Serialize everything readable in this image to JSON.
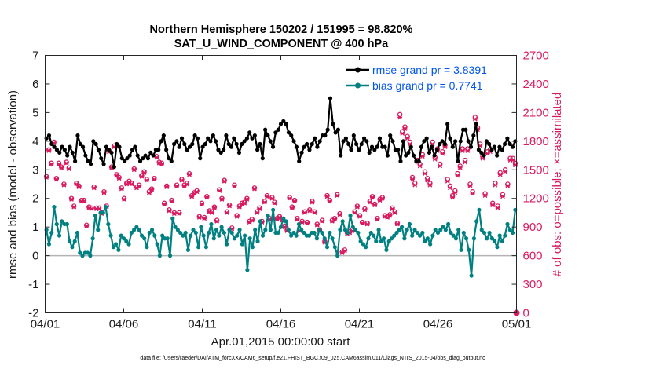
{
  "chart_data": {
    "type": "line",
    "title": "Northern Hemisphere 150202 / 151995 = 98.820%",
    "subtitle": "SAT_U_WIND_COMPONENT @ 400 hPa",
    "xlabel": "Apr.01,2015 00:00:00 start",
    "ylabel_left": "rmse and bias (model - observation)",
    "ylabel_right": "# of obs: o=possible; ×=assimilated",
    "footnote": "data file: /Users/raeder/DAI/ATM_forcXX/CAM6_setup/f.e21.FHIST_BGC.f09_025.CAM6assim.011/Diags_NTrS_2015-04/obs_diag_output.nc",
    "x_tick_labels": [
      "04/01",
      "04/06",
      "04/11",
      "04/16",
      "04/21",
      "04/26",
      "05/01"
    ],
    "x_tick_days": [
      0,
      5,
      10,
      15,
      20,
      25,
      30
    ],
    "xlim": [
      0,
      30
    ],
    "ylim_left": [
      -2,
      7
    ],
    "ylim_right": [
      0,
      2700
    ],
    "left_ticks": [
      -2,
      -1,
      0,
      1,
      2,
      3,
      4,
      5,
      6,
      7
    ],
    "right_ticks": [
      0,
      300,
      600,
      900,
      1200,
      1500,
      1800,
      2100,
      2400,
      2700
    ],
    "grid": false,
    "legend_position": "top-right",
    "zero_line": 0,
    "series": [
      {
        "name": "rmse grand pr = 3.8391",
        "color": "#000000",
        "marker": "filled-circle",
        "values": [
          4.1,
          4.2,
          3.9,
          3.8,
          3.7,
          3.6,
          3.8,
          3.7,
          3.5,
          3.8,
          3.6,
          3.3,
          4.2,
          3.9,
          3.8,
          3.5,
          3.3,
          3.2,
          4.0,
          3.9,
          3.7,
          3.4,
          3.2,
          3.8,
          3.7,
          3.6,
          3.1,
          3.9,
          3.8,
          3.4,
          3.3,
          3.4,
          3.5,
          3.7,
          3.8,
          3.5,
          3.3,
          3.4,
          3.5,
          3.4,
          3.6,
          3.5,
          3.7,
          3.7,
          4.0,
          4.2,
          3.7,
          3.4,
          3.3,
          3.9,
          4.0,
          3.8,
          4.1,
          3.9,
          3.7,
          3.8,
          3.9,
          4.2,
          4.1,
          3.4,
          3.8,
          3.9,
          4.1,
          4.0,
          4.2,
          4.0,
          3.7,
          3.6,
          3.7,
          4.2,
          3.9,
          3.8,
          4.1,
          3.9,
          3.6,
          3.9,
          4.0,
          4.1,
          4.3,
          4.1,
          4.2,
          3.7,
          3.9,
          3.4,
          4.4,
          4.2,
          4.0,
          3.8,
          4.3,
          4.4,
          4.6,
          4.7,
          4.6,
          4.3,
          4.2,
          4.0,
          3.8,
          3.3,
          3.6,
          3.8,
          3.9,
          3.7,
          3.9,
          4.1,
          3.8,
          4.0,
          4.2,
          4.2,
          4.4,
          5.5,
          4.6,
          4.3,
          4.4,
          3.5,
          4.0,
          4.1,
          3.9,
          3.7,
          4.2,
          3.9,
          3.7,
          3.9,
          4.1,
          4.0,
          3.6,
          3.8,
          3.7,
          3.8,
          4.1,
          3.8,
          3.8,
          3.5,
          4.2,
          4.0,
          3.7,
          3.7,
          3.3,
          4.0,
          3.5,
          3.6,
          3.8,
          3.5,
          3.3,
          3.3,
          3.8,
          4.0,
          4.1,
          3.6,
          3.8,
          3.5,
          3.7,
          3.9,
          4.0,
          3.9,
          4.6,
          4.1,
          3.8,
          4.0,
          3.3,
          4.0,
          4.4,
          4.4,
          4.0,
          3.8,
          4.2,
          4.6,
          3.7,
          3.6,
          3.5,
          4.0,
          3.9,
          3.7,
          3.8,
          3.5,
          3.8,
          3.7,
          3.9,
          4.1,
          3.9,
          3.8,
          4.0
        ]
      },
      {
        "name": "bias grand pr = 0.7741",
        "color": "#008080",
        "marker": "filled-circle",
        "values": [
          0.9,
          0.4,
          0.8,
          1.7,
          1.1,
          0.7,
          1.2,
          1.1,
          1.1,
          0.5,
          0.3,
          0.5,
          0.8,
          0.1,
          0.0,
          0.1,
          0.1,
          0.0,
          0.6,
          1.4,
          0.9,
          1.5,
          1.5,
          1.7,
          1.1,
          0.7,
          0.3,
          0.4,
          0.2,
          0.7,
          0.6,
          0.5,
          0.4,
          0.8,
          0.9,
          1.0,
          0.9,
          0.7,
          0.6,
          0.3,
          0.8,
          0.9,
          0.7,
          0.4,
          0.0,
          0.7,
          0.6,
          0.6,
          0.0,
          1.3,
          1.0,
          0.9,
          0.8,
          0.7,
          0.8,
          0.2,
          0.7,
          0.9,
          0.8,
          0.3,
          1.0,
          0.7,
          0.3,
          0.8,
          1.1,
          0.6,
          0.9,
          0.7,
          1.0,
          0.8,
          0.4,
          0.9,
          0.8,
          0.6,
          0.7,
          0.9,
          0.4,
          0.7,
          -0.5,
          0.6,
          0.3,
          0.9,
          0.5,
          1.2,
          0.7,
          0.9,
          1.4,
          0.9,
          1.6,
          0.8,
          0.8,
          1.0,
          1.3,
          1.2,
          0.9,
          0.7,
          0.8,
          0.7,
          1.1,
          0.9,
          0.8,
          0.7,
          0.7,
          0.8,
          0.8,
          0.6,
          0.9,
          0.8,
          0.6,
          0.3,
          0.8,
          0.6,
          0.3,
          0.0,
          0.9,
          1.2,
          0.9,
          0.8,
          1.4,
          1.0,
          0.9,
          0.8,
          0.5,
          0.4,
          0.3,
          0.6,
          0.8,
          0.7,
          0.5,
          0.9,
          0.5,
          0.6,
          0.2,
          0.5,
          0.6,
          0.7,
          0.8,
          0.9,
          1.0,
          0.6,
          0.9,
          1.1,
          0.7,
          0.9,
          0.8,
          0.7,
          0.8,
          0.5,
          0.6,
          0.4,
          0.7,
          0.9,
          0.8,
          0.9,
          1.0,
          0.9,
          1.1,
          0.8,
          0.7,
          0.6,
          0.9,
          0.2,
          0.8,
          0.6,
          0.2,
          -0.7,
          0.6,
          1.2,
          1.6,
          0.9,
          0.8,
          0.6,
          0.8,
          0.6,
          0.5,
          0.3,
          0.7,
          0.5,
          0.7,
          1.1,
          0.9,
          0.8,
          1.6
        ]
      }
    ],
    "obs_count_series": [
      {
        "name": "possible",
        "marker": "o",
        "color": "#d81b60",
        "values": [
          1430,
          1710,
          1570,
          1790,
          1410,
          1570,
          1530,
          1350,
          1580,
          1520,
          1200,
          1120,
          1360,
          1330,
          1180,
          1180,
          920,
          1110,
          1100,
          1320,
          1100,
          1100,
          1050,
          1270,
          1120,
          1700,
          1530,
          1750,
          1450,
          1420,
          1310,
          1200,
          1360,
          1380,
          1360,
          1510,
          1320,
          1340,
          1440,
          1480,
          1400,
          1270,
          1300,
          1410,
          1640,
          1580,
          1570,
          1150,
          1330,
          1080,
          1180,
          1050,
          1340,
          1050,
          1400,
          1340,
          1360,
          1460,
          1230,
          1260,
          1280,
          1010,
          1150,
          1000,
          1220,
          1070,
          1060,
          1110,
          970,
          1290,
          1200,
          1390,
          1060,
          1130,
          890,
          1340,
          1020,
          1120,
          1150,
          1160,
          1200,
          960,
          980,
          1310,
          1060,
          1100,
          960,
          1170,
          1230,
          990,
          1210,
          1160,
          990,
          1010,
          980,
          910,
          870,
          1210,
          1110,
          1180,
          990,
          870,
          960,
          1060,
          950,
          1080,
          1170,
          1060,
          930,
          870,
          970,
          750,
          1230,
          1180,
          970,
          990,
          1240,
          1040,
          640,
          660,
          840,
          850,
          870,
          1060,
          1120,
          1020,
          950,
          1090,
          940,
          1170,
          1220,
          1140,
          990,
          1190,
          1210,
          1020,
          1010,
          1030,
          1100,
          1060,
          940,
          2080,
          1900,
          1950,
          1850,
          1790,
          1420,
          1360,
          1600,
          1560,
          1660,
          1480,
          1410,
          1360,
          1790,
          1630,
          1720,
          1560,
          1690,
          1760,
          1400,
          1330,
          1230,
          1280,
          1460,
          1540,
          1720,
          1600,
          1720,
          1350,
          1270,
          2050,
          1940,
          1770,
          1640,
          1250,
          1690,
          1710,
          1150,
          1360,
          1120,
          1470,
          1240,
          1500,
          1350,
          1620,
          1620,
          1570
        ]
      },
      {
        "name": "assimilated",
        "marker": "x",
        "color": "#d81b60",
        "values": [
          1420,
          1700,
          1560,
          1780,
          1400,
          1560,
          1520,
          1340,
          1570,
          1510,
          1190,
          1110,
          1350,
          1320,
          1170,
          1170,
          910,
          1100,
          1090,
          1310,
          1090,
          1090,
          1040,
          1260,
          1110,
          1690,
          1520,
          1740,
          1440,
          1410,
          1300,
          1190,
          1350,
          1370,
          1350,
          1500,
          1310,
          1330,
          1430,
          1470,
          1390,
          1260,
          1290,
          1400,
          1630,
          1570,
          1560,
          1140,
          1320,
          1070,
          1170,
          1040,
          1330,
          1040,
          1390,
          1330,
          1350,
          1450,
          1220,
          1250,
          1270,
          1000,
          1140,
          990,
          1210,
          1060,
          1050,
          1100,
          960,
          1280,
          1190,
          1380,
          1050,
          1120,
          880,
          1330,
          1010,
          1110,
          1140,
          1150,
          1190,
          950,
          970,
          1300,
          1050,
          1090,
          950,
          1160,
          1220,
          980,
          1200,
          1150,
          980,
          1000,
          970,
          900,
          860,
          1200,
          1100,
          1170,
          980,
          860,
          950,
          1050,
          940,
          1070,
          1160,
          1050,
          920,
          860,
          960,
          740,
          1220,
          1170,
          960,
          980,
          1230,
          1030,
          630,
          650,
          830,
          840,
          860,
          1050,
          1110,
          1010,
          940,
          1080,
          930,
          1160,
          1210,
          1130,
          980,
          1180,
          1200,
          1010,
          1000,
          1020,
          1090,
          1050,
          930,
          2050,
          1880,
          1930,
          1830,
          1770,
          1400,
          1340,
          1580,
          1540,
          1640,
          1460,
          1390,
          1340,
          1770,
          1610,
          1700,
          1540,
          1670,
          1740,
          1380,
          1310,
          1210,
          1260,
          1440,
          1520,
          1700,
          1580,
          1700,
          1330,
          1250,
          2030,
          1920,
          1750,
          1620,
          1230,
          1670,
          1690,
          1130,
          1340,
          1100,
          1450,
          1220,
          1480,
          1330,
          1600,
          1600,
          1550
        ]
      }
    ]
  }
}
